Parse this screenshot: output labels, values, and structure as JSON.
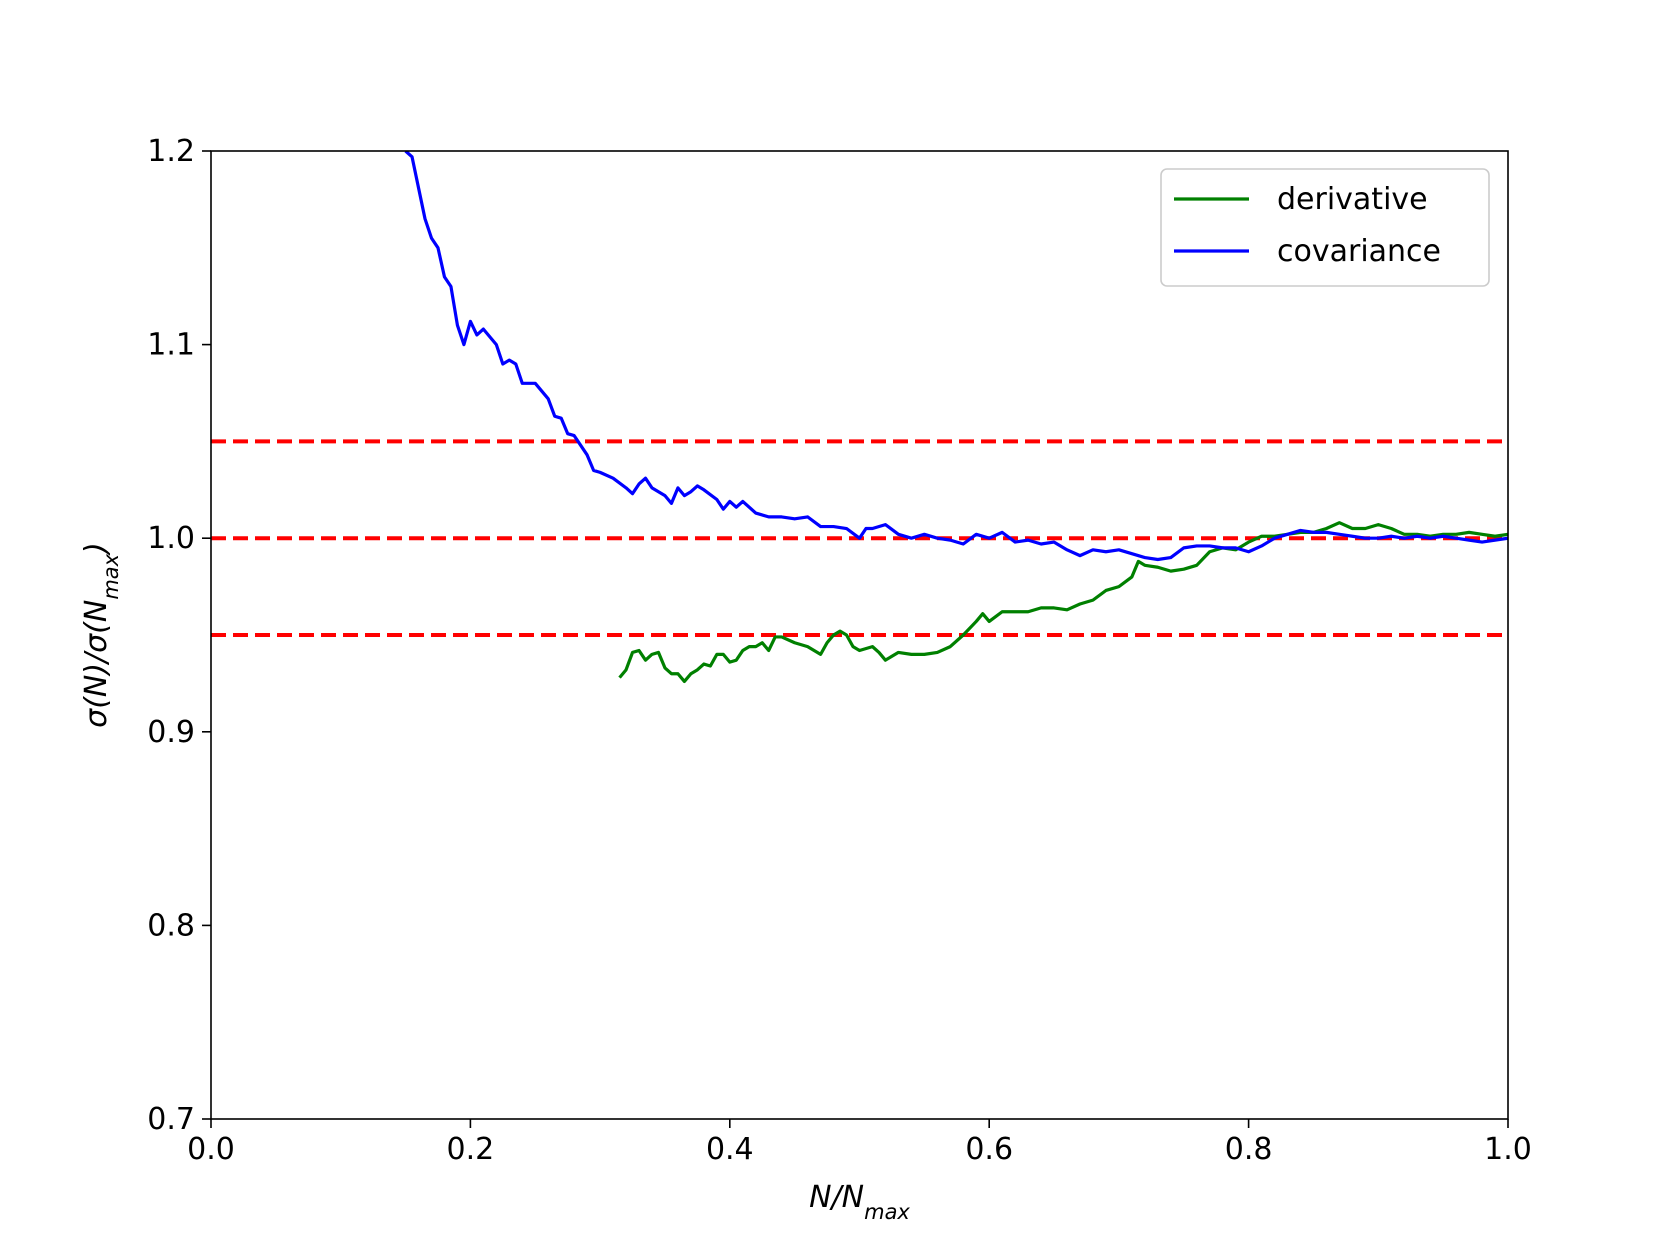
{
  "chart_data": {
    "type": "line",
    "xlabel": [
      {
        "text": "N/N"
      },
      {
        "text": "max",
        "sub": true
      }
    ],
    "ylabel": [
      {
        "text": "σ(N)/σ(N"
      },
      {
        "text": "max",
        "sub": true
      },
      {
        "text": ")"
      }
    ],
    "xlim": [
      0,
      1
    ],
    "ylim": [
      0.7,
      1.2
    ],
    "xticks": [
      {
        "value": 0,
        "label": "0.0"
      },
      0.2,
      0.4,
      0.6,
      0.8,
      {
        "value": 1,
        "label": "1.0"
      }
    ],
    "yticks": [
      0.7,
      0.8,
      0.9,
      {
        "value": 1,
        "label": "1.0"
      },
      1.1,
      1.2
    ],
    "grid": false,
    "legend": "upper right",
    "reference_lines": [
      1.05,
      1.0,
      0.95
    ],
    "reference_color": "#ff0000",
    "series": [
      {
        "name": "derivative",
        "color": "#008000",
        "x": [
          0.315,
          0.32,
          0.325,
          0.33,
          0.335,
          0.34,
          0.345,
          0.35,
          0.355,
          0.36,
          0.365,
          0.37,
          0.375,
          0.38,
          0.385,
          0.39,
          0.395,
          0.4,
          0.405,
          0.41,
          0.415,
          0.42,
          0.425,
          0.43,
          0.435,
          0.44,
          0.45,
          0.46,
          0.47,
          0.475,
          0.48,
          0.485,
          0.49,
          0.495,
          0.5,
          0.51,
          0.515,
          0.52,
          0.53,
          0.54,
          0.55,
          0.56,
          0.57,
          0.58,
          0.59,
          0.595,
          0.6,
          0.61,
          0.62,
          0.63,
          0.64,
          0.65,
          0.66,
          0.67,
          0.68,
          0.69,
          0.7,
          0.71,
          0.715,
          0.72,
          0.73,
          0.74,
          0.75,
          0.76,
          0.77,
          0.78,
          0.79,
          0.8,
          0.81,
          0.82,
          0.83,
          0.84,
          0.85,
          0.86,
          0.87,
          0.88,
          0.89,
          0.9,
          0.91,
          0.92,
          0.93,
          0.94,
          0.95,
          0.96,
          0.97,
          0.98,
          0.99,
          1.0
        ],
        "values": [
          0.928,
          0.932,
          0.941,
          0.942,
          0.937,
          0.94,
          0.941,
          0.933,
          0.93,
          0.93,
          0.926,
          0.93,
          0.932,
          0.935,
          0.934,
          0.94,
          0.94,
          0.936,
          0.937,
          0.942,
          0.944,
          0.944,
          0.946,
          0.942,
          0.949,
          0.949,
          0.946,
          0.944,
          0.94,
          0.946,
          0.95,
          0.952,
          0.95,
          0.944,
          0.942,
          0.944,
          0.941,
          0.937,
          0.941,
          0.94,
          0.94,
          0.941,
          0.944,
          0.95,
          0.957,
          0.961,
          0.957,
          0.962,
          0.962,
          0.962,
          0.964,
          0.964,
          0.963,
          0.966,
          0.968,
          0.973,
          0.975,
          0.98,
          0.988,
          0.986,
          0.985,
          0.983,
          0.984,
          0.986,
          0.993,
          0.995,
          0.994,
          0.998,
          1.001,
          1.001,
          1.002,
          1.003,
          1.003,
          1.005,
          1.008,
          1.005,
          1.005,
          1.007,
          1.005,
          1.002,
          1.002,
          1.001,
          1.002,
          1.002,
          1.003,
          1.002,
          1.001,
          1.002
        ]
      },
      {
        "name": "covariance",
        "color": "#0000ff",
        "x": [
          0.15,
          0.155,
          0.165,
          0.17,
          0.175,
          0.18,
          0.185,
          0.19,
          0.195,
          0.2,
          0.205,
          0.21,
          0.22,
          0.225,
          0.23,
          0.235,
          0.24,
          0.25,
          0.26,
          0.265,
          0.27,
          0.275,
          0.28,
          0.29,
          0.295,
          0.3,
          0.31,
          0.32,
          0.325,
          0.33,
          0.335,
          0.34,
          0.35,
          0.355,
          0.36,
          0.365,
          0.37,
          0.375,
          0.38,
          0.39,
          0.395,
          0.4,
          0.405,
          0.41,
          0.42,
          0.43,
          0.44,
          0.45,
          0.46,
          0.47,
          0.48,
          0.49,
          0.5,
          0.505,
          0.51,
          0.52,
          0.53,
          0.54,
          0.55,
          0.56,
          0.57,
          0.58,
          0.59,
          0.6,
          0.61,
          0.62,
          0.63,
          0.64,
          0.65,
          0.66,
          0.67,
          0.68,
          0.69,
          0.7,
          0.71,
          0.72,
          0.73,
          0.74,
          0.75,
          0.76,
          0.77,
          0.78,
          0.79,
          0.8,
          0.81,
          0.82,
          0.83,
          0.84,
          0.85,
          0.86,
          0.87,
          0.88,
          0.89,
          0.9,
          0.91,
          0.92,
          0.93,
          0.94,
          0.95,
          0.96,
          0.97,
          0.98,
          0.99,
          1.0
        ],
        "values": [
          1.2,
          1.197,
          1.165,
          1.155,
          1.15,
          1.135,
          1.13,
          1.11,
          1.1,
          1.112,
          1.105,
          1.108,
          1.1,
          1.09,
          1.092,
          1.09,
          1.08,
          1.08,
          1.072,
          1.063,
          1.062,
          1.054,
          1.053,
          1.043,
          1.035,
          1.034,
          1.031,
          1.026,
          1.023,
          1.028,
          1.031,
          1.026,
          1.022,
          1.018,
          1.026,
          1.022,
          1.024,
          1.027,
          1.025,
          1.02,
          1.015,
          1.019,
          1.016,
          1.019,
          1.013,
          1.011,
          1.011,
          1.01,
          1.011,
          1.006,
          1.006,
          1.005,
          1.0,
          1.005,
          1.005,
          1.007,
          1.002,
          1.0,
          1.002,
          1.0,
          0.999,
          0.997,
          1.002,
          1.0,
          1.003,
          0.998,
          0.999,
          0.997,
          0.998,
          0.994,
          0.991,
          0.994,
          0.993,
          0.994,
          0.992,
          0.99,
          0.989,
          0.99,
          0.995,
          0.996,
          0.996,
          0.995,
          0.995,
          0.993,
          0.996,
          1.0,
          1.002,
          1.004,
          1.003,
          1.003,
          1.002,
          1.001,
          1.0,
          1.0,
          1.001,
          1.0,
          1.001,
          1.0,
          1.001,
          1.0,
          0.999,
          0.998,
          0.999,
          1.0
        ]
      }
    ]
  }
}
